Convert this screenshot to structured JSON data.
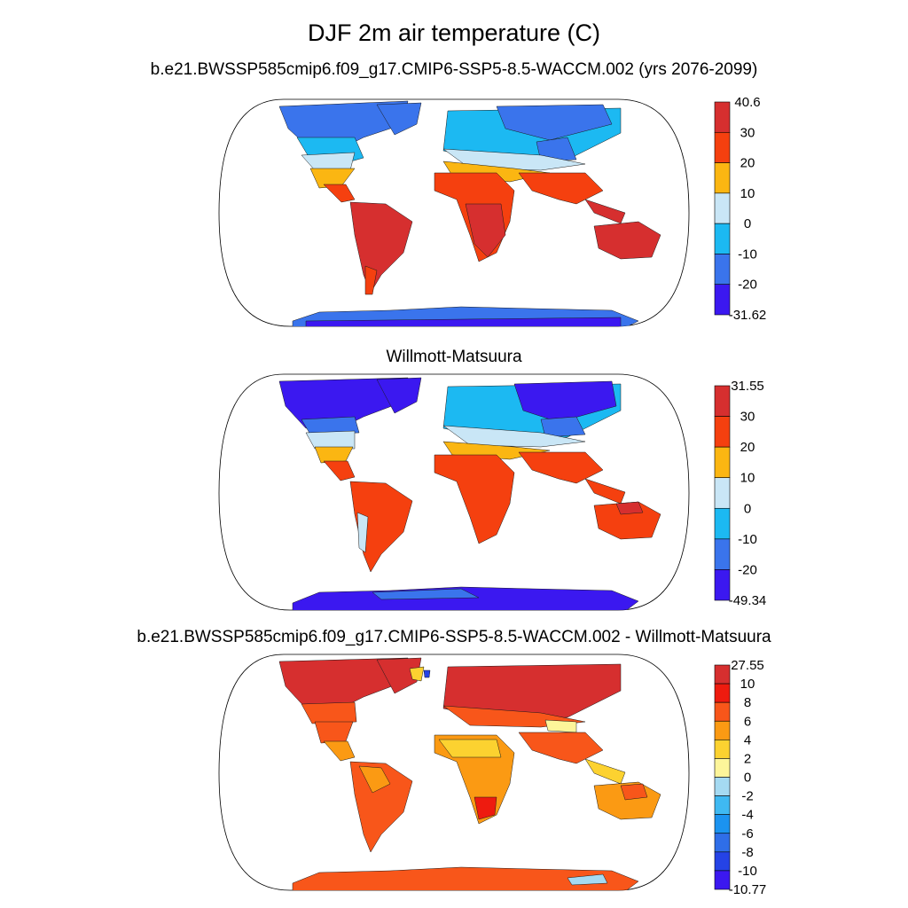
{
  "title": "DJF 2m air temperature (C)",
  "panels": [
    {
      "subtitle": "b.e21.BWSSP585cmip6.f09_g17.CMIP6-SSP5-8.5-WACCM.002 (yrs 2076-2099)",
      "colorbar": {
        "labels": [
          "40.6",
          "30",
          "20",
          "10",
          "0",
          "-10",
          "-20",
          "-31.62"
        ],
        "colors": [
          "#d62f2f",
          "#f5400f",
          "#fbb612",
          "#c9e6f6",
          "#1cb9f2",
          "#3a74ec",
          "#3b18f0"
        ]
      }
    },
    {
      "subtitle": "Willmott-Matsuura",
      "colorbar": {
        "labels": [
          "31.55",
          "30",
          "20",
          "10",
          "0",
          "-10",
          "-20",
          "-49.34"
        ],
        "colors": [
          "#d62f2f",
          "#f5400f",
          "#fbb612",
          "#c9e6f6",
          "#1cb9f2",
          "#3a74ec",
          "#3b18f0"
        ]
      }
    },
    {
      "subtitle": "b.e21.BWSSP585cmip6.f09_g17.CMIP6-SSP5-8.5-WACCM.002 - Willmott-Matsuura",
      "colorbar": {
        "labels": [
          "27.55",
          "10",
          "8",
          "6",
          "4",
          "2",
          "0",
          "-2",
          "-4",
          "-6",
          "-8",
          "-10",
          "-10.77"
        ],
        "colors": [
          "#d62f2f",
          "#ee1b0f",
          "#f8561a",
          "#fb9a13",
          "#fcd230",
          "#fdf59a",
          "#a5daf2",
          "#3fb9f2",
          "#1b93f0",
          "#2f6ee8",
          "#2543e6",
          "#3b18f0"
        ]
      }
    }
  ]
}
